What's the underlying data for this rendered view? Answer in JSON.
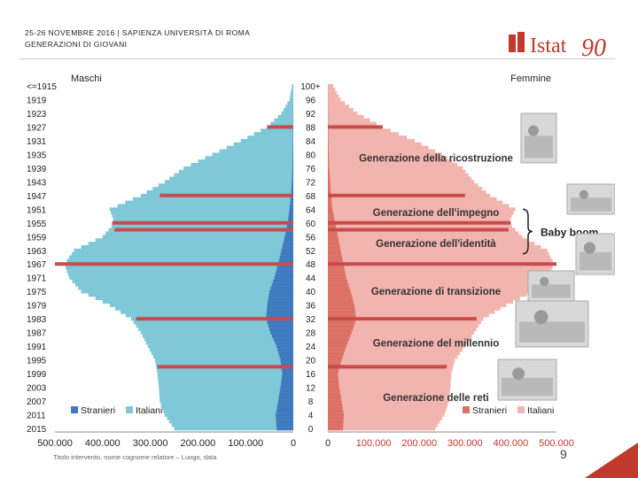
{
  "header": {
    "line1": "25-26 NOVEMBRE 2016 | SAPIENZA UNIVERSITÀ DI ROMA",
    "line2": "GENERAZIONI DI GIOVANI"
  },
  "logo": {
    "word": "Istat",
    "number": "90",
    "color": "#c0392b"
  },
  "footer": {
    "text": "Titolo intervento, nome cognome relatore – Luogo, data",
    "page": "9"
  },
  "colors": {
    "maschi_italiani": "#7ec8d8",
    "maschi_stranieri": "#3f79c0",
    "femmine_italiane": "#f2b4ae",
    "femmine_straniere": "#dc7064",
    "generation_line": "#c94b4b",
    "accent": "#c0392b"
  },
  "chart_data": {
    "type": "population-pyramid",
    "left_title": "Maschi",
    "right_title": "Femmine",
    "age_labels_left": [
      "<=1915",
      "1919",
      "1923",
      "1927",
      "1931",
      "1935",
      "1939",
      "1943",
      "1947",
      "1951",
      "1955",
      "1959",
      "1963",
      "1967",
      "1971",
      "1975",
      "1979",
      "1983",
      "1987",
      "1991",
      "1995",
      "1999",
      "2003",
      "2007",
      "2011",
      "2015"
    ],
    "age_labels_center": [
      "100+",
      "96",
      "92",
      "88",
      "84",
      "80",
      "76",
      "72",
      "68",
      "64",
      "60",
      "56",
      "52",
      "48",
      "44",
      "40",
      "36",
      "32",
      "28",
      "24",
      "20",
      "16",
      "12",
      "8",
      "4",
      "0"
    ],
    "x_ticks_left": [
      "500.000",
      "400.000",
      "300.000",
      "200.000",
      "100.000",
      "0"
    ],
    "x_ticks_right": [
      "0",
      "100.000",
      "200.000",
      "300.000",
      "400.000",
      "500.000"
    ],
    "x_max": 500000,
    "age_profile": [
      {
        "age": 0,
        "m_total": 250000,
        "m_stranieri": 35000,
        "f_total": 235000,
        "f_straniere": 33000
      },
      {
        "age": 4,
        "m_total": 270000,
        "m_stranieri": 37000,
        "f_total": 255000,
        "f_straniere": 35000
      },
      {
        "age": 8,
        "m_total": 280000,
        "m_stranieri": 32000,
        "f_total": 265000,
        "f_straniere": 30000
      },
      {
        "age": 12,
        "m_total": 282000,
        "m_stranieri": 27000,
        "f_total": 268000,
        "f_straniere": 25000
      },
      {
        "age": 16,
        "m_total": 285000,
        "m_stranieri": 23000,
        "f_total": 270000,
        "f_straniere": 22000
      },
      {
        "age": 20,
        "m_total": 290000,
        "m_stranieri": 27000,
        "f_total": 278000,
        "f_straniere": 30000
      },
      {
        "age": 24,
        "m_total": 305000,
        "m_stranieri": 35000,
        "f_total": 300000,
        "f_straniere": 40000
      },
      {
        "age": 28,
        "m_total": 320000,
        "m_stranieri": 48000,
        "f_total": 320000,
        "f_straniere": 52000
      },
      {
        "age": 32,
        "m_total": 340000,
        "m_stranieri": 57000,
        "f_total": 340000,
        "f_straniere": 62000
      },
      {
        "age": 36,
        "m_total": 385000,
        "m_stranieri": 55000,
        "f_total": 390000,
        "f_straniere": 58000
      },
      {
        "age": 40,
        "m_total": 445000,
        "m_stranieri": 50000,
        "f_total": 450000,
        "f_straniere": 50000
      },
      {
        "age": 44,
        "m_total": 470000,
        "m_stranieri": 40000,
        "f_total": 480000,
        "f_straniere": 40000
      },
      {
        "age": 48,
        "m_total": 480000,
        "m_stranieri": 32000,
        "f_total": 495000,
        "f_straniere": 34000
      },
      {
        "age": 52,
        "m_total": 460000,
        "m_stranieri": 25000,
        "f_total": 480000,
        "f_straniere": 28000
      },
      {
        "age": 56,
        "m_total": 400000,
        "m_stranieri": 18000,
        "f_total": 425000,
        "f_straniere": 22000
      },
      {
        "age": 60,
        "m_total": 375000,
        "m_stranieri": 12000,
        "f_total": 395000,
        "f_straniere": 16000
      },
      {
        "age": 64,
        "m_total": 385000,
        "m_stranieri": 8000,
        "f_total": 410000,
        "f_straniere": 10000
      },
      {
        "age": 68,
        "m_total": 320000,
        "m_stranieri": 5000,
        "f_total": 355000,
        "f_straniere": 7000
      },
      {
        "age": 72,
        "m_total": 270000,
        "m_stranieri": 3000,
        "f_total": 320000,
        "f_straniere": 5000
      },
      {
        "age": 76,
        "m_total": 230000,
        "m_stranieri": 2000,
        "f_total": 295000,
        "f_straniere": 3000
      },
      {
        "age": 80,
        "m_total": 170000,
        "m_stranieri": 1500,
        "f_total": 250000,
        "f_straniere": 2000
      },
      {
        "age": 84,
        "m_total": 110000,
        "m_stranieri": 1000,
        "f_total": 190000,
        "f_straniere": 1500
      },
      {
        "age": 88,
        "m_total": 55000,
        "m_stranieri": 500,
        "f_total": 120000,
        "f_straniere": 800
      },
      {
        "age": 92,
        "m_total": 25000,
        "m_stranieri": 300,
        "f_total": 65000,
        "f_straniere": 500
      },
      {
        "age": 96,
        "m_total": 8000,
        "m_stranieri": 100,
        "f_total": 28000,
        "f_straniere": 200
      },
      {
        "age": 100,
        "m_total": 3000,
        "m_stranieri": 50,
        "f_total": 12000,
        "f_straniere": 100
      }
    ],
    "generation_lines": [
      {
        "age": 88,
        "m_extent": 55000,
        "f_extent": 120000
      },
      {
        "age": 68,
        "m_extent": 280000,
        "f_extent": 300000
      },
      {
        "age": 60,
        "m_extent": 380000,
        "f_extent": 400000
      },
      {
        "age": 58,
        "m_extent": 375000,
        "f_extent": 395000
      },
      {
        "age": 48,
        "m_extent": 500000,
        "f_extent": 500000
      },
      {
        "age": 32,
        "m_extent": 330000,
        "f_extent": 325000
      },
      {
        "age": 18,
        "m_extent": 285000,
        "f_extent": 260000
      }
    ],
    "generations": [
      {
        "label": "Generazione della ricostruzione",
        "age": 79
      },
      {
        "label": "Generazione dell'impegno",
        "age": 63
      },
      {
        "label": "Generazione dell'identità",
        "age": 54
      },
      {
        "label": "Generazione di transizione",
        "age": 40
      },
      {
        "label": "Generazione del millennio",
        "age": 25
      },
      {
        "label": "Generazione delle reti",
        "age": 9
      }
    ],
    "brace_label": "Baby boom",
    "legend_left": [
      "Stranieri",
      "Italiani"
    ],
    "legend_right": [
      "Stranieri",
      "Italiani"
    ]
  }
}
